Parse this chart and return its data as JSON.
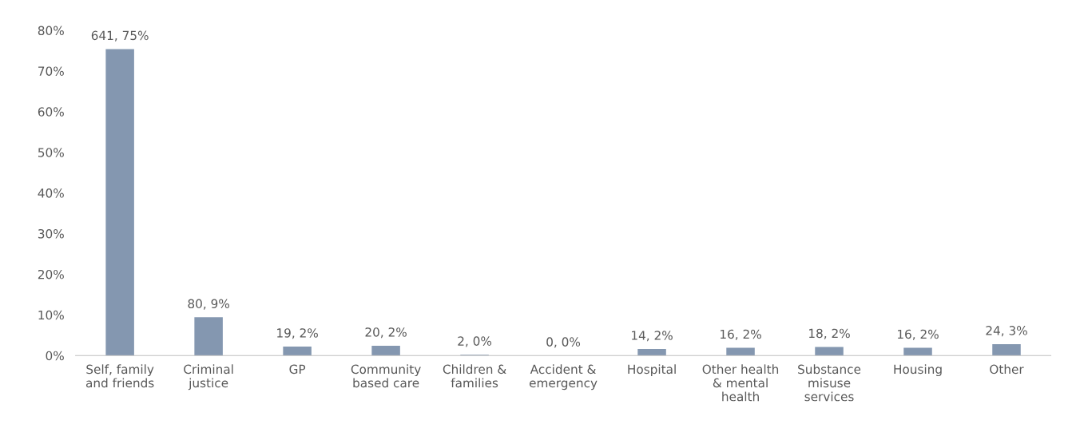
{
  "chart_data": {
    "type": "bar",
    "categories": [
      "Self, family\nand friends",
      "Criminal\njustice",
      "GP",
      "Community\nbased care",
      "Children &\nfamilies",
      "Accident &\nemergency",
      "Hospital",
      "Other health\n& mental\nhealth",
      "Substance\nmisuse\nservices",
      "Housing",
      "Other"
    ],
    "values": [
      75.4,
      9.4,
      2.2,
      2.4,
      0.2,
      0,
      1.6,
      1.9,
      2.1,
      1.9,
      2.8
    ],
    "value_labels": [
      "641, 75%",
      "80, 9%",
      "19, 2%",
      "20, 2%",
      "2, 0%",
      "0, 0%",
      "14, 2%",
      "16, 2%",
      "18, 2%",
      "16, 2%",
      "24, 3%"
    ],
    "color": "#8497b0",
    "ylim": [
      0,
      80
    ],
    "yticks": [
      {
        "value": 0,
        "label": "0%"
      },
      {
        "value": 10,
        "label": "10%"
      },
      {
        "value": 20,
        "label": "20%"
      },
      {
        "value": 30,
        "label": "30%"
      },
      {
        "value": 40,
        "label": "40%"
      },
      {
        "value": 50,
        "label": "50%"
      },
      {
        "value": 60,
        "label": "60%"
      },
      {
        "value": 70,
        "label": "70%"
      },
      {
        "value": 80,
        "label": "80%"
      }
    ],
    "grid": false,
    "legend": false
  }
}
